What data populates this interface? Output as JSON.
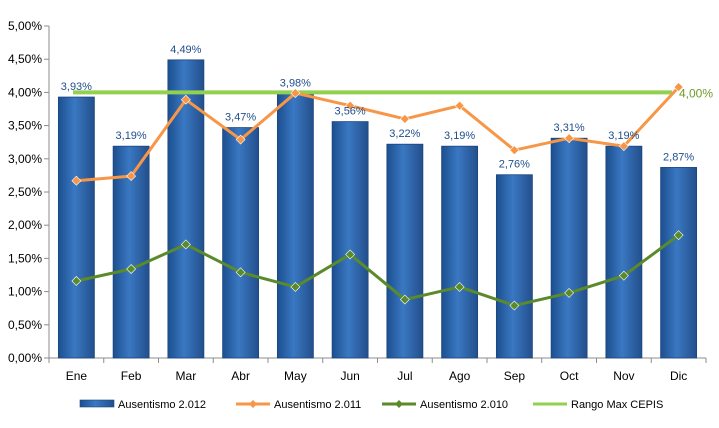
{
  "chart_data": {
    "type": "bar",
    "categories": [
      "Ene",
      "Feb",
      "Mar",
      "Abr",
      "May",
      "Jun",
      "Jul",
      "Ago",
      "Sep",
      "Oct",
      "Nov",
      "Dic"
    ],
    "ylim": [
      0,
      5
    ],
    "ytick_step": 0.5,
    "y_ticks": [
      "0,00%",
      "0,50%",
      "1,00%",
      "1,50%",
      "2,00%",
      "2,50%",
      "3,00%",
      "3,50%",
      "4,00%",
      "4,50%",
      "5,00%"
    ],
    "grid": false,
    "legend_position": "bottom",
    "series": [
      {
        "name": "Ausentismo 2.012",
        "type": "bar",
        "color": "#2f69b0",
        "values": [
          3.93,
          3.19,
          4.49,
          3.47,
          3.98,
          3.56,
          3.22,
          3.19,
          2.76,
          3.31,
          3.19,
          2.87
        ],
        "labels": [
          "3,93%",
          "3,19%",
          "4,49%",
          "3,47%",
          "3,98%",
          "3,56%",
          "3,22%",
          "3,19%",
          "2,76%",
          "3,31%",
          "3,19%",
          "2,87%"
        ]
      },
      {
        "name": "Ausentismo 2.011",
        "type": "line",
        "color": "#f79646",
        "marker": "diamond",
        "values": [
          2.67,
          2.74,
          3.89,
          3.29,
          3.99,
          3.8,
          3.6,
          3.8,
          3.13,
          3.31,
          3.19,
          4.08
        ]
      },
      {
        "name": "Ausentismo 2.010",
        "type": "line",
        "color": "#5a8a2a",
        "marker": "diamond",
        "values": [
          1.16,
          1.34,
          1.71,
          1.29,
          1.07,
          1.56,
          0.88,
          1.07,
          0.79,
          0.98,
          1.24,
          1.85
        ]
      },
      {
        "name": "Rango Max CEPIS",
        "type": "line",
        "color": "#92d050",
        "marker": "none",
        "values": [
          4,
          4,
          4,
          4,
          4,
          4,
          4,
          4,
          4,
          4,
          4,
          4
        ],
        "end_label": "4,00%"
      }
    ]
  }
}
